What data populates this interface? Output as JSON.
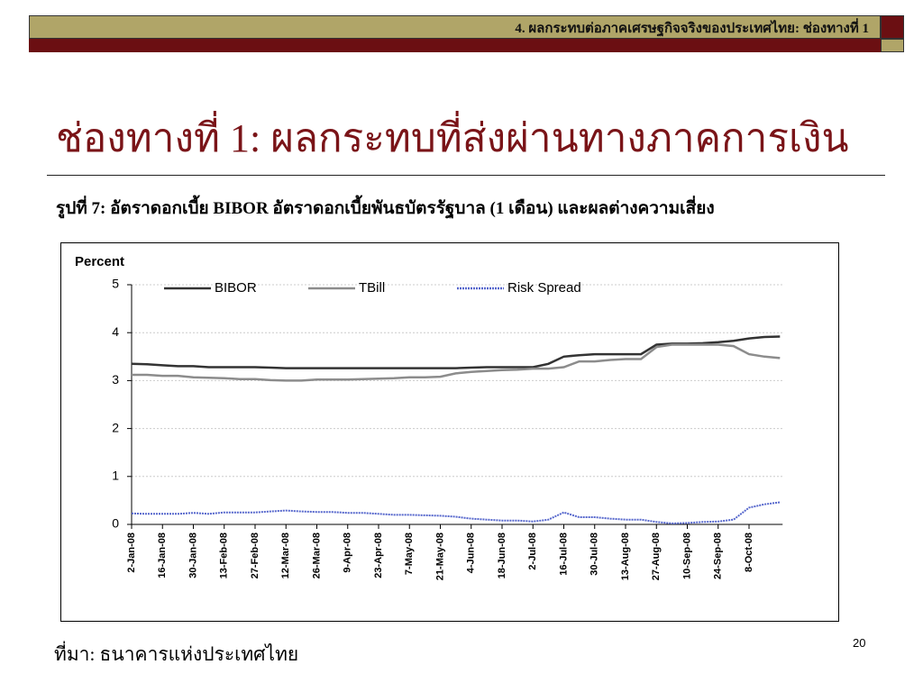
{
  "header": {
    "title": "4. ผลกระทบต่อภาคเศรษฐกิจจริงของประเทศไทย: ช่องทางที่ 1"
  },
  "slide_title": "ช่องทางที่ 1: ผลกระทบที่ส่งผ่านทางภาคการเงิน",
  "figure_caption": "รูปที่ 7: อัตราดอกเบี้ย BIBOR อัตราดอกเบี้ยพันธบัตรรัฐบาล (1 เดือน) และผลต่างความเสี่ยง",
  "chart_data": {
    "type": "line",
    "y_label": "Percent",
    "categories": [
      "2-Jan-08",
      null,
      "16-Jan-08",
      null,
      "30-Jan-08",
      null,
      "13-Feb-08",
      null,
      "27-Feb-08",
      null,
      "12-Mar-08",
      null,
      "26-Mar-08",
      null,
      "9-Apr-08",
      null,
      "23-Apr-08",
      null,
      "7-May-08",
      null,
      "21-May-08",
      null,
      "4-Jun-08",
      null,
      "18-Jun-08",
      null,
      "2-Jul-08",
      null,
      "16-Jul-08",
      null,
      "30-Jul-08",
      null,
      "13-Aug-08",
      null,
      "27-Aug-08",
      null,
      "10-Sep-08",
      null,
      "24-Sep-08",
      null,
      "8-Oct-08",
      null,
      null
    ],
    "series": [
      {
        "name": "BIBOR",
        "color": "#333333",
        "values": [
          3.35,
          3.34,
          3.32,
          3.3,
          3.3,
          3.28,
          3.28,
          3.28,
          3.28,
          3.27,
          3.26,
          3.26,
          3.26,
          3.26,
          3.26,
          3.26,
          3.26,
          3.26,
          3.26,
          3.26,
          3.26,
          3.26,
          3.27,
          3.28,
          3.28,
          3.28,
          3.28,
          3.35,
          3.5,
          3.53,
          3.55,
          3.55,
          3.55,
          3.55,
          3.75,
          3.77,
          3.77,
          3.78,
          3.8,
          3.83,
          3.88,
          3.91,
          3.92
        ]
      },
      {
        "name": "TBill",
        "color": "#8c8c8c",
        "values": [
          3.12,
          3.12,
          3.1,
          3.1,
          3.07,
          3.06,
          3.05,
          3.03,
          3.03,
          3.01,
          3.0,
          3.0,
          3.02,
          3.02,
          3.02,
          3.03,
          3.04,
          3.05,
          3.07,
          3.07,
          3.08,
          3.15,
          3.18,
          3.2,
          3.22,
          3.23,
          3.25,
          3.25,
          3.28,
          3.4,
          3.4,
          3.43,
          3.45,
          3.45,
          3.7,
          3.75,
          3.75,
          3.75,
          3.75,
          3.72,
          3.55,
          3.5,
          3.47
        ]
      },
      {
        "name": "Risk Spread",
        "color": "#5566cc",
        "values": [
          0.23,
          0.22,
          0.22,
          0.22,
          0.24,
          0.22,
          0.25,
          0.25,
          0.25,
          0.27,
          0.29,
          0.27,
          0.26,
          0.26,
          0.24,
          0.24,
          0.22,
          0.2,
          0.2,
          0.19,
          0.18,
          0.16,
          0.12,
          0.1,
          0.08,
          0.08,
          0.06,
          0.1,
          0.25,
          0.15,
          0.15,
          0.12,
          0.1,
          0.1,
          0.05,
          0.02,
          0.03,
          0.05,
          0.06,
          0.1,
          0.35,
          0.42,
          0.46
        ]
      }
    ],
    "ylim": [
      0,
      5
    ],
    "yticks": [
      0,
      1,
      2,
      3,
      4,
      5
    ],
    "grid": true
  },
  "source": "ที่มา: ธนาคารแห่งประเทศไทย",
  "page_number": "20"
}
